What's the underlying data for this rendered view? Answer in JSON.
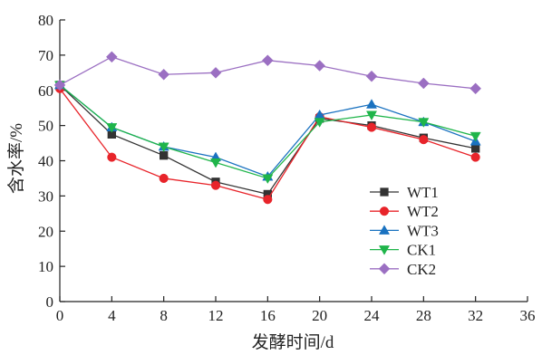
{
  "chart_data": {
    "type": "line",
    "xlabel": "发酵时间/d",
    "ylabel": "含水率/%",
    "xlim": [
      0,
      36
    ],
    "ylim": [
      0,
      80
    ],
    "xticks": [
      0,
      4,
      8,
      12,
      16,
      20,
      24,
      28,
      32,
      36
    ],
    "yticks": [
      0,
      10,
      20,
      30,
      40,
      50,
      60,
      70,
      80
    ],
    "x": [
      0,
      4,
      8,
      12,
      16,
      20,
      24,
      28,
      32
    ],
    "legend_position": "right",
    "grid": false,
    "series": [
      {
        "name": "WT1",
        "color": "#333333",
        "marker": "square",
        "values": [
          61.5,
          47.5,
          41.5,
          34.0,
          30.5,
          52.0,
          50.0,
          46.5,
          43.5
        ]
      },
      {
        "name": "WT2",
        "color": "#e8242a",
        "marker": "circle",
        "values": [
          60.5,
          41.0,
          35.0,
          33.0,
          29.0,
          52.5,
          49.5,
          46.0,
          41.0
        ]
      },
      {
        "name": "WT3",
        "color": "#1a72c0",
        "marker": "triangle-up",
        "values": [
          61.5,
          49.5,
          44.0,
          41.0,
          35.5,
          53.0,
          56.0,
          51.0,
          45.5
        ]
      },
      {
        "name": "CK1",
        "color": "#1fb54a",
        "marker": "triangle-down",
        "values": [
          61.5,
          49.5,
          44.0,
          39.5,
          35.0,
          51.0,
          53.0,
          51.0,
          47.0
        ]
      },
      {
        "name": "CK2",
        "color": "#9b6fc2",
        "marker": "diamond",
        "values": [
          61.5,
          69.5,
          64.5,
          65.0,
          68.5,
          67.0,
          64.0,
          62.0,
          60.5
        ]
      }
    ]
  }
}
